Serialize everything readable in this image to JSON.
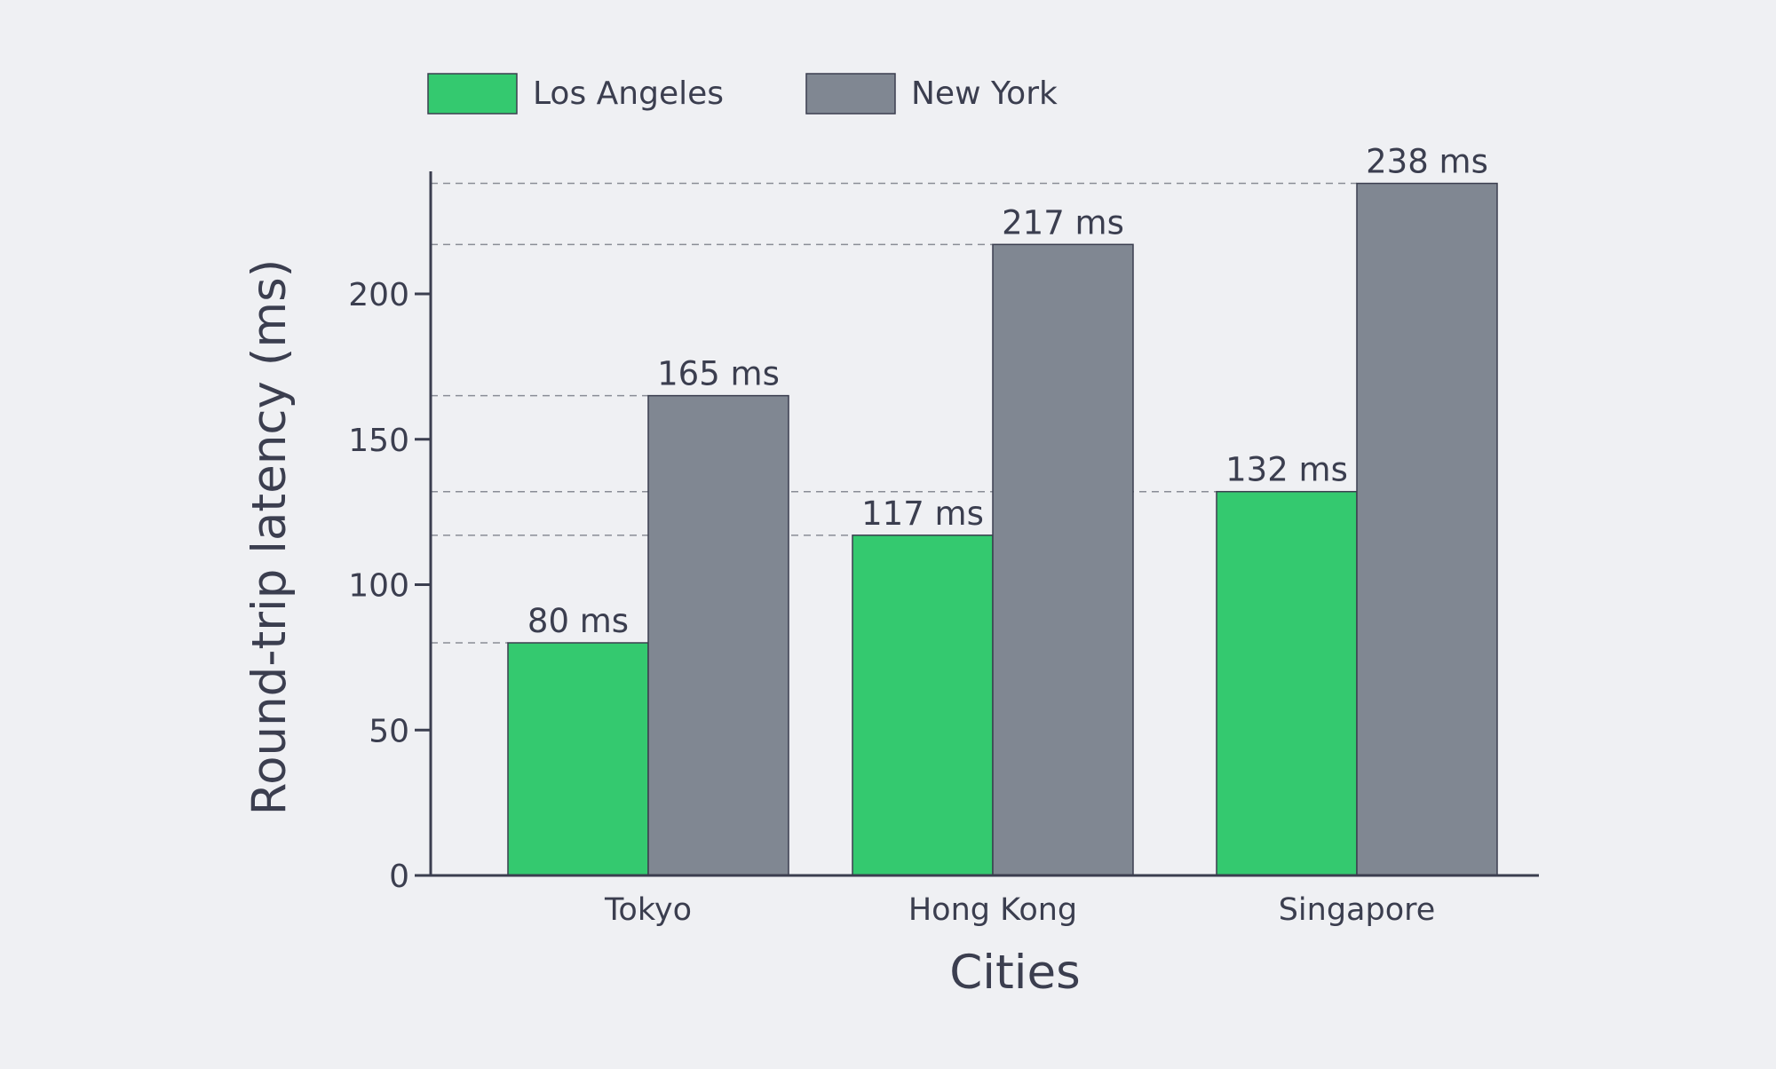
{
  "chart_data": {
    "type": "bar",
    "title": "",
    "xlabel": "Cities",
    "ylabel": "Round-trip latency (ms)",
    "categories": [
      "Tokyo",
      "Hong Kong",
      "Singapore"
    ],
    "series": [
      {
        "name": "Los Angeles",
        "color": "#34c96f",
        "values": [
          80,
          117,
          132
        ]
      },
      {
        "name": "New York",
        "color": "#808792",
        "values": [
          165,
          217,
          238
        ]
      }
    ],
    "value_unit": "ms",
    "ylim": [
      0,
      240
    ],
    "yticks": [
      0,
      50,
      100,
      150,
      200
    ],
    "reference_lines": "dashed line from y-axis to the top of each bar",
    "grid": false,
    "legend_position": "top-left",
    "background_color": "#eff0f3",
    "axis_color": "#3b3e4f",
    "text_color": "#3b3e4f"
  }
}
